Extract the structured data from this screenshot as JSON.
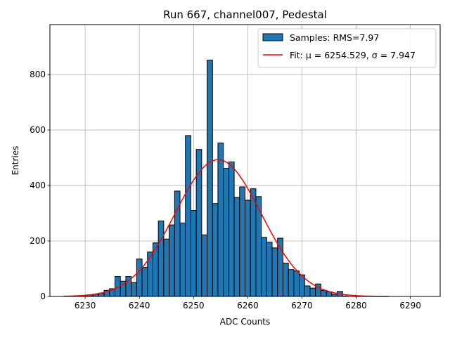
{
  "chart_data": {
    "type": "bar",
    "title": "Run 667, channel007, Pedestal",
    "xlabel": "ADC Counts",
    "ylabel": "Entries",
    "xlim": [
      6223.5,
      6295.5
    ],
    "ylim": [
      0,
      980
    ],
    "xticks": [
      6230,
      6240,
      6250,
      6260,
      6270,
      6280,
      6290
    ],
    "yticks": [
      0,
      200,
      400,
      600,
      800
    ],
    "grid": true,
    "legend_position": "top-right",
    "histogram": {
      "name": "Samples: RMS=7.97",
      "bin_width": 1,
      "x": [
        6229,
        6230,
        6231,
        6232,
        6233,
        6234,
        6235,
        6236,
        6237,
        6238,
        6239,
        6240,
        6241,
        6242,
        6243,
        6244,
        6245,
        6246,
        6247,
        6248,
        6249,
        6250,
        6251,
        6252,
        6253,
        6254,
        6255,
        6256,
        6257,
        6258,
        6259,
        6260,
        6261,
        6262,
        6263,
        6264,
        6265,
        6266,
        6267,
        6268,
        6269,
        6270,
        6271,
        6272,
        6273,
        6274,
        6275,
        6276,
        6277,
        6278
      ],
      "values": [
        1,
        2,
        5,
        8,
        12,
        22,
        28,
        72,
        55,
        72,
        50,
        135,
        105,
        160,
        193,
        272,
        207,
        258,
        380,
        265,
        580,
        310,
        530,
        222,
        852,
        335,
        553,
        462,
        485,
        357,
        395,
        347,
        388,
        360,
        213,
        195,
        175,
        210,
        120,
        97,
        92,
        78,
        38,
        30,
        45,
        22,
        17,
        8,
        18,
        2
      ],
      "color": "#1f77b4",
      "edgecolor": "#000000"
    },
    "fit": {
      "name": "Fit: μ = 6254.529, σ = 7.947",
      "type": "gaussian",
      "mu": 6254.529,
      "sigma": 7.947,
      "amplitude": 493,
      "x_range": [
        6226,
        6286
      ],
      "color": "#ff0000"
    }
  }
}
